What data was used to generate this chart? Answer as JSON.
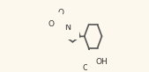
{
  "bg_color": "#fdf8ed",
  "bond_color": "#555555",
  "line_width": 1.2,
  "text_color": "#333333",
  "xlim": [
    0,
    1
  ],
  "ylim": [
    0,
    1
  ]
}
